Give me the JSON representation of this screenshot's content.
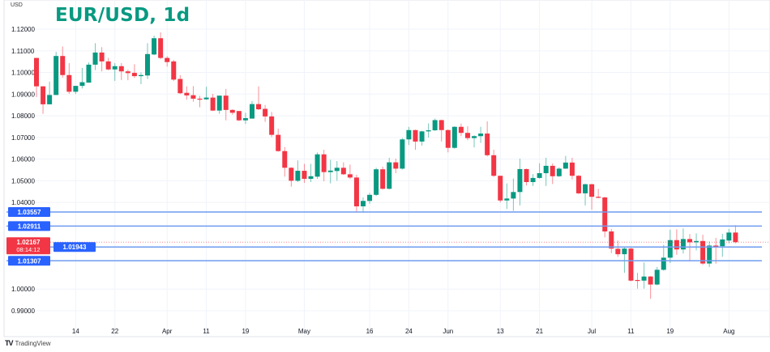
{
  "chart_data": {
    "type": "candlestick",
    "title": "EUR/USD, 1d",
    "ylabel": "USD",
    "ylim": [
      0.985,
      1.1215
    ],
    "grid": true,
    "colors": {
      "up": "#089981",
      "down": "#f23645",
      "level_line": "#6f9cf0",
      "level_label": "#2962ff",
      "last_price": "#f23645",
      "title": "#089981"
    },
    "y_ticks": [
      "1.12000",
      "1.11000",
      "1.10000",
      "1.09000",
      "1.08000",
      "1.07000",
      "1.06000",
      "1.05000",
      "1.04000",
      "1.00000",
      "0.99000"
    ],
    "x_ticks": [
      {
        "label": "14",
        "date": "03-14"
      },
      {
        "label": "22",
        "date": "03-22"
      },
      {
        "label": "Apr",
        "date": "04-01"
      },
      {
        "label": "11",
        "date": "04-11"
      },
      {
        "label": "19",
        "date": "04-19"
      },
      {
        "label": "May",
        "date": "05-02"
      },
      {
        "label": "16",
        "date": "05-16"
      },
      {
        "label": "24",
        "date": "05-24"
      },
      {
        "label": "Jun",
        "date": "06-01"
      },
      {
        "label": "13",
        "date": "06-13"
      },
      {
        "label": "21",
        "date": "06-21"
      },
      {
        "label": "Jul",
        "date": "07-01"
      },
      {
        "label": "11",
        "date": "07-11"
      },
      {
        "label": "19",
        "date": "07-19"
      },
      {
        "label": "Aug",
        "date": "08-01"
      }
    ],
    "levels": [
      {
        "value": 1.03557,
        "label": "1.03557"
      },
      {
        "value": 1.02911,
        "label": "1.02911"
      },
      {
        "value": 1.01943,
        "label": "1.01943"
      },
      {
        "value": 1.01307,
        "label": "1.01307"
      }
    ],
    "last_price": {
      "value": 1.02167,
      "label": "1.02167",
      "countdown": "08:14:12"
    },
    "dates": [
      "03-04",
      "03-07",
      "03-08",
      "03-09",
      "03-10",
      "03-11",
      "03-14",
      "03-15",
      "03-16",
      "03-17",
      "03-18",
      "03-21",
      "03-22",
      "03-23",
      "03-24",
      "03-25",
      "03-28",
      "03-29",
      "03-30",
      "03-31",
      "04-01",
      "04-04",
      "04-05",
      "04-06",
      "04-07",
      "04-08",
      "04-11",
      "04-12",
      "04-13",
      "04-14",
      "04-15",
      "04-18",
      "04-19",
      "04-20",
      "04-21",
      "04-22",
      "04-25",
      "04-26",
      "04-27",
      "04-28",
      "04-29",
      "05-02",
      "05-03",
      "05-04",
      "05-05",
      "05-06",
      "05-09",
      "05-10",
      "05-11",
      "05-12",
      "05-13",
      "05-16",
      "05-17",
      "05-18",
      "05-19",
      "05-20",
      "05-23",
      "05-24",
      "05-25",
      "05-26",
      "05-27",
      "05-30",
      "05-31",
      "06-01",
      "06-02",
      "06-03",
      "06-06",
      "06-07",
      "06-08",
      "06-09",
      "06-10",
      "06-13",
      "06-14",
      "06-15",
      "06-16",
      "06-17",
      "06-20",
      "06-21",
      "06-22",
      "06-23",
      "06-24",
      "06-27",
      "06-28",
      "06-29",
      "06-30",
      "07-01",
      "07-04",
      "07-05",
      "07-06",
      "07-07",
      "07-08",
      "07-11",
      "07-12",
      "07-13",
      "07-14",
      "07-15",
      "07-18",
      "07-19",
      "07-20",
      "07-21",
      "07-22",
      "07-25",
      "07-26",
      "07-27",
      "07-28",
      "07-29",
      "08-01",
      "08-02"
    ],
    "ohlc": [
      [
        1.1067,
        1.1067,
        1.0886,
        1.0936
      ],
      [
        1.0936,
        1.0936,
        1.0809,
        1.0853
      ],
      [
        1.0853,
        1.0958,
        1.0853,
        1.0896
      ],
      [
        1.0896,
        1.1095,
        1.0896,
        1.1076
      ],
      [
        1.1076,
        1.112,
        1.0976,
        1.0988
      ],
      [
        1.0988,
        1.1043,
        1.0901,
        1.0911
      ],
      [
        1.0911,
        1.0938,
        1.0901,
        1.0938
      ],
      [
        1.0938,
        1.1021,
        1.0926,
        1.0955
      ],
      [
        1.0953,
        1.1046,
        1.0953,
        1.1036
      ],
      [
        1.1036,
        1.1135,
        1.1011,
        1.1092
      ],
      [
        1.1092,
        1.1117,
        1.1005,
        1.1051
      ],
      [
        1.1051,
        1.1067,
        1.101,
        1.1014
      ],
      [
        1.1014,
        1.1043,
        1.0961,
        1.1029
      ],
      [
        1.1029,
        1.1043,
        1.0965,
        1.1005
      ],
      [
        1.1005,
        1.1013,
        1.0964,
        1.0997
      ],
      [
        1.0998,
        1.1038,
        1.0975,
        1.0983
      ],
      [
        1.0983,
        1.1,
        1.0946,
        1.0988
      ],
      [
        1.0986,
        1.1135,
        1.097,
        1.1085
      ],
      [
        1.1083,
        1.117,
        1.108,
        1.1158
      ],
      [
        1.1158,
        1.1185,
        1.1061,
        1.1067
      ],
      [
        1.1067,
        1.1075,
        1.1027,
        1.1048
      ],
      [
        1.1051,
        1.1058,
        1.0961,
        1.0967
      ],
      [
        1.097,
        1.0988,
        1.09,
        1.0904
      ],
      [
        1.0906,
        1.0936,
        1.0874,
        1.0894
      ],
      [
        1.0895,
        1.0937,
        1.0865,
        1.0879
      ],
      [
        1.0879,
        1.0892,
        1.0839,
        1.0876
      ],
      [
        1.0876,
        1.0934,
        1.0874,
        1.0884
      ],
      [
        1.0884,
        1.0901,
        1.0822,
        1.0824
      ],
      [
        1.0824,
        1.0893,
        1.0809,
        1.0893
      ],
      [
        1.0893,
        1.0924,
        1.0779,
        1.0827
      ],
      [
        1.0827,
        1.083,
        1.0805,
        1.0814
      ],
      [
        1.0822,
        1.0822,
        1.0775,
        1.0779
      ],
      [
        1.0779,
        1.0814,
        1.0762,
        1.0789
      ],
      [
        1.0787,
        1.0868,
        1.0787,
        1.0854
      ],
      [
        1.0854,
        1.0936,
        1.0826,
        1.083
      ],
      [
        1.0832,
        1.085,
        1.0772,
        1.0797
      ],
      [
        1.0797,
        1.0818,
        1.0702,
        1.0712
      ],
      [
        1.0712,
        1.0741,
        1.0634,
        1.0637
      ],
      [
        1.0637,
        1.0656,
        1.0519,
        1.056
      ],
      [
        1.056,
        1.0562,
        1.0473,
        1.05
      ],
      [
        1.05,
        1.0594,
        1.0494,
        1.0546
      ],
      [
        1.0546,
        1.0578,
        1.049,
        1.0509
      ],
      [
        1.0509,
        1.0578,
        1.0494,
        1.0521
      ],
      [
        1.0519,
        1.0631,
        1.0509,
        1.0622
      ],
      [
        1.0622,
        1.0643,
        1.0498,
        1.054
      ],
      [
        1.054,
        1.0597,
        1.0488,
        1.0547
      ],
      [
        1.0545,
        1.0591,
        1.05,
        1.056
      ],
      [
        1.056,
        1.0585,
        1.0527,
        1.053
      ],
      [
        1.053,
        1.0575,
        1.0508,
        1.0515
      ],
      [
        1.0515,
        1.0528,
        1.0357,
        1.0382
      ],
      [
        1.0382,
        1.0423,
        1.0353,
        1.0407
      ],
      [
        1.0407,
        1.0444,
        1.0394,
        1.0435
      ],
      [
        1.0435,
        1.056,
        1.043,
        1.0553
      ],
      [
        1.0553,
        1.0565,
        1.046,
        1.0463
      ],
      [
        1.0463,
        1.0606,
        1.046,
        1.0585
      ],
      [
        1.0585,
        1.0602,
        1.0535,
        1.0556
      ],
      [
        1.0556,
        1.0697,
        1.0552,
        1.0691
      ],
      [
        1.0691,
        1.0749,
        1.0665,
        1.0734
      ],
      [
        1.0734,
        1.0736,
        1.0643,
        1.0681
      ],
      [
        1.0681,
        1.0731,
        1.0662,
        1.0728
      ],
      [
        1.0728,
        1.0765,
        1.0699,
        1.0733
      ],
      [
        1.0733,
        1.0787,
        1.073,
        1.078
      ],
      [
        1.078,
        1.0782,
        1.0681,
        1.0734
      ],
      [
        1.0734,
        1.0737,
        1.0631,
        1.0652
      ],
      [
        1.0652,
        1.0752,
        1.0648,
        1.0749
      ],
      [
        1.0749,
        1.0764,
        1.0706,
        1.0721
      ],
      [
        1.0721,
        1.0752,
        1.0687,
        1.0697
      ],
      [
        1.0697,
        1.071,
        1.0654,
        1.0706
      ],
      [
        1.0706,
        1.0749,
        1.0675,
        1.0718
      ],
      [
        1.0718,
        1.0774,
        1.0612,
        1.0618
      ],
      [
        1.0618,
        1.0643,
        1.0518,
        1.0523
      ],
      [
        1.0523,
        1.0523,
        1.04,
        1.0409
      ],
      [
        1.0409,
        1.0488,
        1.037,
        1.0418
      ],
      [
        1.0418,
        1.051,
        1.0361,
        1.0448
      ],
      [
        1.0448,
        1.0602,
        1.0386,
        1.0554
      ],
      [
        1.0554,
        1.0556,
        1.0478,
        1.0494
      ],
      [
        1.0494,
        1.0531,
        1.0476,
        1.0513
      ],
      [
        1.0513,
        1.0581,
        1.051,
        1.0535
      ],
      [
        1.0535,
        1.0606,
        1.0476,
        1.0569
      ],
      [
        1.0569,
        1.058,
        1.0485,
        1.0521
      ],
      [
        1.0521,
        1.0562,
        1.0518,
        1.0556
      ],
      [
        1.0556,
        1.0615,
        1.0555,
        1.0584
      ],
      [
        1.0584,
        1.0606,
        1.0506,
        1.0523
      ],
      [
        1.0523,
        1.0526,
        1.0438,
        1.0442
      ],
      [
        1.0442,
        1.0487,
        1.0386,
        1.0484
      ],
      [
        1.0484,
        1.0486,
        1.0366,
        1.0426
      ],
      [
        1.0426,
        1.0463,
        1.0419,
        1.0422
      ],
      [
        1.0423,
        1.0426,
        1.0239,
        1.0266
      ],
      [
        1.0266,
        1.0278,
        1.0166,
        1.0187
      ],
      [
        1.0186,
        1.0224,
        1.0149,
        1.0161
      ],
      [
        1.0161,
        1.0195,
        1.0075,
        1.0187
      ],
      [
        1.0187,
        1.019,
        1.0036,
        1.0039
      ],
      [
        1.0042,
        1.0075,
        1.0002,
        1.0039
      ],
      [
        1.0039,
        1.0123,
        1.0002,
        1.0058
      ],
      [
        1.0058,
        1.006,
        0.9955,
        1.0021
      ],
      [
        1.0021,
        1.0102,
        1.0018,
        1.0089
      ],
      [
        1.0089,
        1.0204,
        1.0085,
        1.0145
      ],
      [
        1.0145,
        1.0274,
        1.012,
        1.0226
      ],
      [
        1.0226,
        1.0276,
        1.0158,
        1.0183
      ],
      [
        1.0183,
        1.028,
        1.0164,
        1.0231
      ],
      [
        1.0231,
        1.0254,
        1.0133,
        1.0216
      ],
      [
        1.0216,
        1.0257,
        1.0179,
        1.0222
      ],
      [
        1.0222,
        1.0251,
        1.0112,
        1.0118
      ],
      [
        1.0118,
        1.022,
        1.0102,
        1.0201
      ],
      [
        1.0201,
        1.0236,
        1.0117,
        1.0198
      ],
      [
        1.0198,
        1.0255,
        1.0149,
        1.0229
      ],
      [
        1.0224,
        1.0278,
        1.0211,
        1.0261
      ],
      [
        1.0261,
        1.0295,
        1.0211,
        1.02167
      ]
    ]
  },
  "branding": {
    "name": "TradingView"
  }
}
